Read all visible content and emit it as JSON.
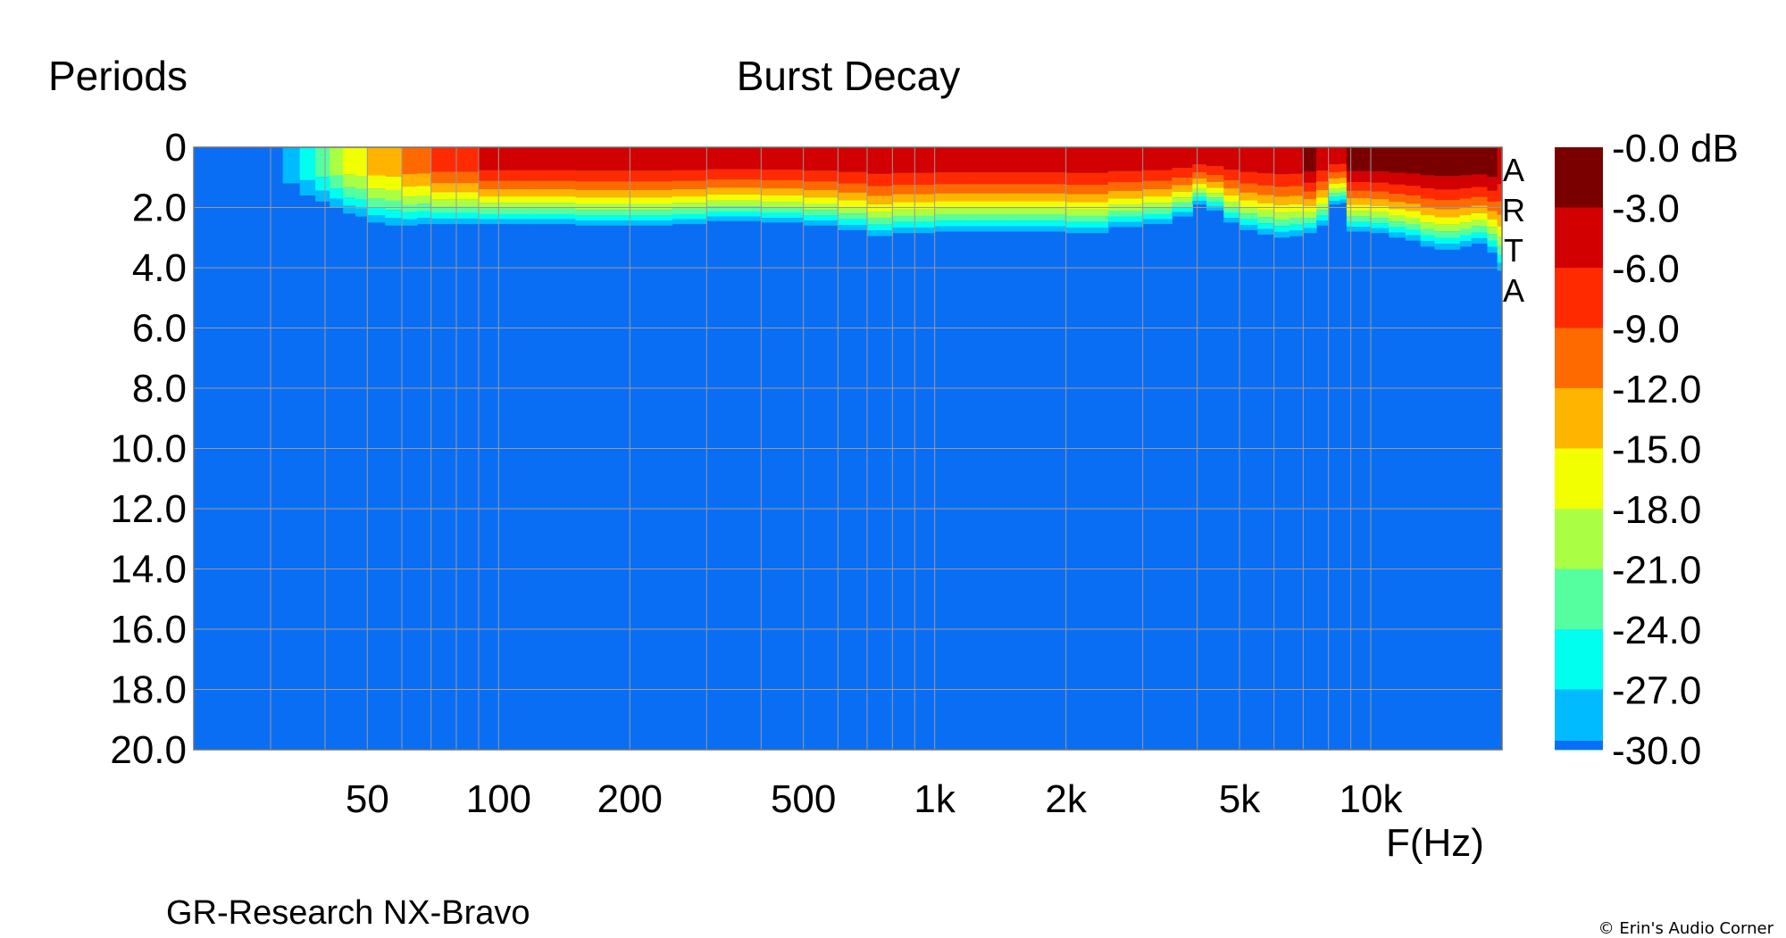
{
  "chart_data": {
    "type": "heatmap",
    "title": "Burst Decay",
    "ylabel": "Periods",
    "xlabel": "F(Hz)",
    "subtitle": "GR-Research NX-Bravo",
    "watermark": "ARTA",
    "copyright": "© Erin's Audio Corner",
    "x_scale": "log",
    "xlim": [
      20,
      20000
    ],
    "ylim": [
      20.0,
      0
    ],
    "x_ticks": [
      {
        "value": 50,
        "label": "50"
      },
      {
        "value": 100,
        "label": "100"
      },
      {
        "value": 200,
        "label": "200"
      },
      {
        "value": 500,
        "label": "500"
      },
      {
        "value": 1000,
        "label": "1k"
      },
      {
        "value": 2000,
        "label": "2k"
      },
      {
        "value": 5000,
        "label": "5k"
      },
      {
        "value": 10000,
        "label": "10k"
      }
    ],
    "y_ticks": [
      "0",
      "2.0",
      "4.0",
      "6.0",
      "8.0",
      "10.0",
      "12.0",
      "14.0",
      "16.0",
      "18.0",
      "20.0"
    ],
    "grid": true,
    "colorbar": {
      "labels": [
        "-0.0 dB",
        "-3.0",
        "-6.0",
        "-9.0",
        "-12.0",
        "-15.0",
        "-18.0",
        "-21.0",
        "-24.0",
        "-27.0",
        "-30.0"
      ],
      "colors": [
        "#7a0000",
        "#d20000",
        "#ff2a00",
        "#ff6a00",
        "#ffb400",
        "#f2ff00",
        "#aaff44",
        "#55ffa0",
        "#00ffee",
        "#00bbff",
        "#0a6ef5"
      ]
    },
    "contour_x_hz": [
      32,
      35,
      38,
      41,
      44,
      47,
      50,
      55,
      60,
      65,
      70,
      75,
      80,
      90,
      100,
      120,
      150,
      200,
      250,
      300,
      400,
      500,
      600,
      700,
      800,
      1000,
      1200,
      1500,
      2000,
      2500,
      3000,
      3500,
      3900,
      4200,
      4600,
      5000,
      5500,
      6000,
      6500,
      7000,
      7500,
      8000,
      8500,
      8800,
      9300,
      10000,
      11000,
      12000,
      13000,
      14000,
      15000,
      16000,
      17000,
      18500,
      19500
    ],
    "contour_onset_periods": [
      0.0,
      0.0,
      0.0,
      0.0,
      0.0,
      0.0,
      0.0,
      0.0,
      0.0,
      0.0,
      0.0,
      0.0,
      0.0,
      0.0,
      0.0,
      0.0,
      0.0,
      0.0,
      0.0,
      0.0,
      0.0,
      0.0,
      0.0,
      0.0,
      0.0,
      0.0,
      0.0,
      0.0,
      0.0,
      0.0,
      0.0,
      0.0,
      0.0,
      0.0,
      0.0,
      0.0,
      0.0,
      0.0,
      0.0,
      0.0,
      0.0,
      0.0,
      0.0,
      0.0,
      0.0,
      0.0,
      0.0,
      0.0,
      0.0,
      0.0,
      0.0,
      0.0,
      0.0,
      0.0,
      0.0
    ],
    "contour_end_periods": [
      1.2,
      1.6,
      1.8,
      2.0,
      2.2,
      2.3,
      2.5,
      2.6,
      2.6,
      2.55,
      2.55,
      2.55,
      2.55,
      2.55,
      2.55,
      2.55,
      2.6,
      2.6,
      2.55,
      2.45,
      2.5,
      2.6,
      2.75,
      2.95,
      2.85,
      2.8,
      2.8,
      2.8,
      2.85,
      2.65,
      2.55,
      2.3,
      1.9,
      2.1,
      2.5,
      2.75,
      2.9,
      3.0,
      2.95,
      2.85,
      2.6,
      1.9,
      1.85,
      2.8,
      2.8,
      2.85,
      3.0,
      3.1,
      3.3,
      3.4,
      3.4,
      3.3,
      3.2,
      3.5,
      4.1
    ],
    "peak_level_db": [
      -27,
      -24,
      -21,
      -18,
      -15,
      -15,
      -12,
      -12,
      -9,
      -9,
      -6,
      -6,
      -6,
      -3,
      -3,
      -3,
      -3,
      -3,
      -3,
      -3,
      -3,
      -3,
      -3,
      -3,
      -3,
      -3,
      -3,
      -3,
      -3,
      -3,
      -3,
      -3,
      -3,
      -3,
      -3,
      -3,
      -3,
      -3,
      -3,
      0,
      -3,
      -3,
      -3,
      0,
      0,
      0,
      0,
      0,
      0,
      0,
      0,
      0,
      0,
      0,
      -3
    ]
  }
}
